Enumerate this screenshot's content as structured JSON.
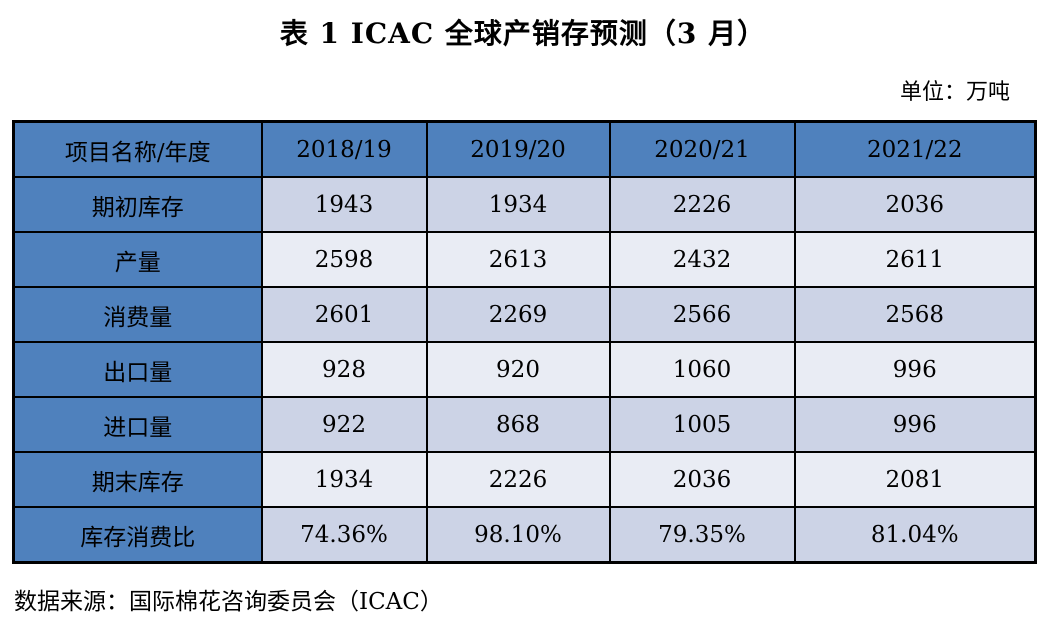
{
  "title": "表 1 ICAC 全球产销存预测（3 月）",
  "unit_note": "单位：万吨",
  "table": {
    "columns": [
      "项目名称/年度",
      "2018/19",
      "2019/20",
      "2020/21",
      "2021/22"
    ],
    "rows": [
      {
        "label": "期初库存",
        "values": [
          "1943",
          "1934",
          "2226",
          "2036"
        ]
      },
      {
        "label": "产量",
        "values": [
          "2598",
          "2613",
          "2432",
          "2611"
        ]
      },
      {
        "label": "消费量",
        "values": [
          "2601",
          "2269",
          "2566",
          "2568"
        ]
      },
      {
        "label": "出口量",
        "values": [
          "928",
          "920",
          "1060",
          "996"
        ]
      },
      {
        "label": "进口量",
        "values": [
          "922",
          "868",
          "1005",
          "996"
        ]
      },
      {
        "label": "期末库存",
        "values": [
          "1934",
          "2226",
          "2036",
          "2081"
        ]
      },
      {
        "label": "库存消费比",
        "values": [
          "74.36%",
          "98.10%",
          "79.35%",
          "81.04%"
        ]
      }
    ]
  },
  "source_note": "数据来源：国际棉花咨询委员会（ICAC）",
  "colors": {
    "header_bg": "#4f81bd",
    "row_stripe_dark": "#ccd3e6",
    "row_stripe_light": "#e9ecf4",
    "border": "#000000",
    "text": "#000000"
  }
}
